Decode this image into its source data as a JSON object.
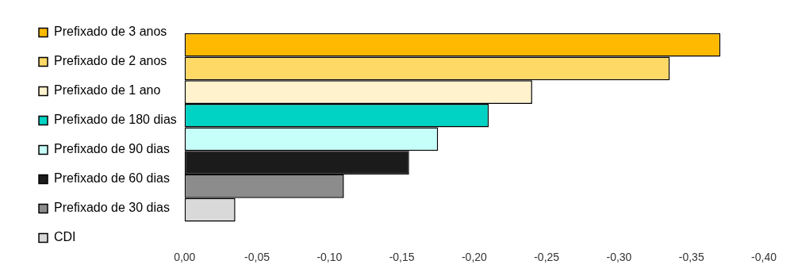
{
  "chart_data": {
    "type": "bar",
    "orientation": "horizontal",
    "categories": [
      null
    ],
    "series": [
      {
        "name": "Prefixado de 3 anos",
        "color": "#ffb900",
        "values": [
          -0.37
        ]
      },
      {
        "name": "Prefixado de 2 anos",
        "color": "#ffd966",
        "values": [
          -0.335
        ]
      },
      {
        "name": "Prefixado de 1 ano",
        "color": "#fff2cc",
        "values": [
          -0.24
        ]
      },
      {
        "name": "Prefixado de 180 dias",
        "color": "#00d2c3",
        "values": [
          -0.21
        ]
      },
      {
        "name": "Prefixado de 90 dias",
        "color": "#c6fff9",
        "values": [
          -0.175
        ]
      },
      {
        "name": "Prefixado de 60 dias",
        "color": "#1b1b1b",
        "values": [
          -0.155
        ]
      },
      {
        "name": "Prefixado de 30 dias",
        "color": "#8c8c8c",
        "values": [
          -0.11
        ]
      },
      {
        "name": "CDI",
        "color": "#d9d9d9",
        "values": [
          -0.035
        ]
      }
    ],
    "xlim": [
      0,
      -0.4
    ],
    "xticks": [
      {
        "value": 0,
        "label": "0,00"
      },
      {
        "value": -0.05,
        "label": "-0,05"
      },
      {
        "value": -0.1,
        "label": "-0,10"
      },
      {
        "value": -0.15,
        "label": "-0,15"
      },
      {
        "value": -0.2,
        "label": "-0,20"
      },
      {
        "value": -0.25,
        "label": "-0,25"
      },
      {
        "value": -0.3,
        "label": "-0,30"
      },
      {
        "value": -0.35,
        "label": "-0,35"
      },
      {
        "value": -0.4,
        "label": "-0,40"
      }
    ],
    "tick_labels": "x",
    "grid": false,
    "legend": "left"
  }
}
